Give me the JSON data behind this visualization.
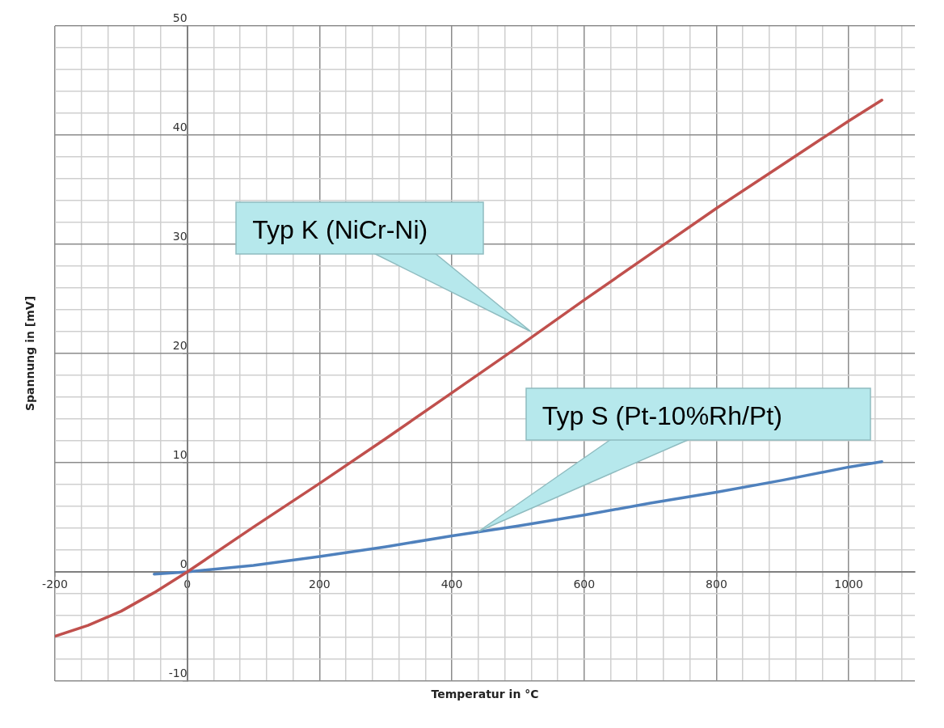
{
  "chart_data": {
    "type": "line",
    "xlabel": "Temperatur in °C",
    "ylabel": "Spannung in [mV]",
    "xlim": [
      -200,
      1100
    ],
    "xticks": [
      -200,
      {
        "value": -160,
        "label": null
      },
      {
        "value": -120,
        "label": null
      },
      {
        "value": -80,
        "label": null
      },
      {
        "value": -40,
        "label": null
      },
      0,
      {
        "value": 40,
        "label": null
      },
      {
        "value": 80,
        "label": null
      },
      {
        "value": 120,
        "label": null
      },
      {
        "value": 160,
        "label": null
      },
      200,
      {
        "value": 240,
        "label": null
      },
      {
        "value": 280,
        "label": null
      },
      {
        "value": 320,
        "label": null
      },
      {
        "value": 360,
        "label": null
      },
      400,
      {
        "value": 440,
        "label": null
      },
      {
        "value": 480,
        "label": null
      },
      {
        "value": 520,
        "label": null
      },
      {
        "value": 560,
        "label": null
      },
      600,
      {
        "value": 640,
        "label": null
      },
      {
        "value": 680,
        "label": null
      },
      {
        "value": 720,
        "label": null
      },
      {
        "value": 760,
        "label": null
      },
      800,
      {
        "value": 840,
        "label": null
      },
      {
        "value": 880,
        "label": null
      },
      {
        "value": 920,
        "label": null
      },
      {
        "value": 960,
        "label": null
      },
      1000,
      {
        "value": 1040,
        "label": null
      },
      {
        "value": 1080,
        "label": null
      }
    ],
    "ylim": [
      -10,
      50
    ],
    "yticks": [
      -10,
      {
        "value": -8,
        "label": null
      },
      {
        "value": -6,
        "label": null
      },
      {
        "value": -4,
        "label": null
      },
      {
        "value": -2,
        "label": null
      },
      0,
      {
        "value": 2,
        "label": null
      },
      {
        "value": 4,
        "label": null
      },
      {
        "value": 6,
        "label": null
      },
      {
        "value": 8,
        "label": null
      },
      10,
      {
        "value": 12,
        "label": null
      },
      {
        "value": 14,
        "label": null
      },
      {
        "value": 16,
        "label": null
      },
      {
        "value": 18,
        "label": null
      },
      20,
      {
        "value": 22,
        "label": null
      },
      {
        "value": 24,
        "label": null
      },
      {
        "value": 26,
        "label": null
      },
      {
        "value": 28,
        "label": null
      },
      30,
      {
        "value": 32,
        "label": null
      },
      {
        "value": 34,
        "label": null
      },
      {
        "value": 36,
        "label": null
      },
      {
        "value": 38,
        "label": null
      },
      40,
      {
        "value": 42,
        "label": null
      },
      {
        "value": 44,
        "label": null
      },
      {
        "value": 46,
        "label": null
      },
      {
        "value": 48,
        "label": null
      },
      50
    ],
    "grid": true,
    "legend": false,
    "marker": "none",
    "line_style": "solid",
    "series": [
      {
        "color": "#c0504d",
        "x": [
          -200,
          -150,
          -100,
          -50,
          0,
          100,
          200,
          300,
          400,
          500,
          600,
          700,
          800,
          900,
          1000,
          1050
        ],
        "values": [
          -5.9,
          -4.9,
          -3.6,
          -1.9,
          0,
          4.1,
          8.1,
          12.2,
          16.4,
          20.6,
          24.9,
          29.1,
          33.3,
          37.3,
          41.3,
          43.2
        ]
      },
      {
        "color": "#4f81bd",
        "x": [
          -50,
          0,
          100,
          200,
          300,
          400,
          500,
          600,
          700,
          800,
          900,
          1000,
          1050
        ],
        "values": [
          -0.2,
          0,
          0.6,
          1.4,
          2.3,
          3.3,
          4.2,
          5.2,
          6.3,
          7.3,
          8.4,
          9.6,
          10.1
        ]
      }
    ],
    "annotations": [
      {
        "text": "Typ K (NiCr-Ni)",
        "x": 520,
        "y": 22
      },
      {
        "text": "Typ S (Pt-10%Rh/Pt)",
        "x": 440,
        "y": 3.7
      }
    ]
  }
}
